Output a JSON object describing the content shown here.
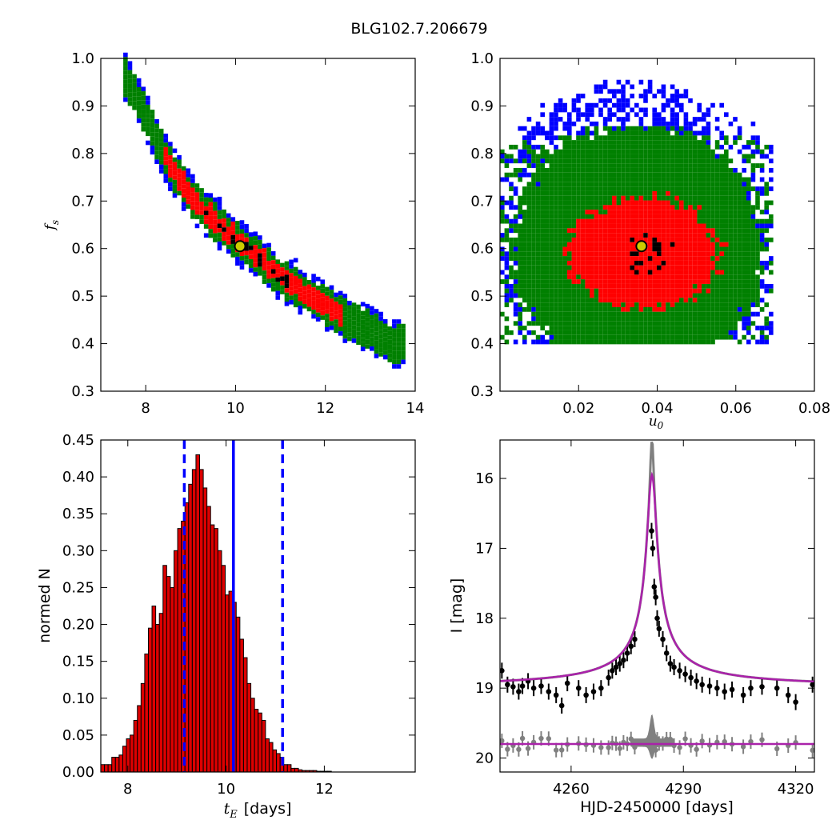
{
  "figure": {
    "title": "BLG102.7.206679"
  },
  "colors": {
    "level1": "#000000",
    "level2": "#ff0000",
    "level3": "#008000",
    "level4": "#0000ff",
    "best_fit_face": "#cccc00",
    "hist_bar": "#dd0000",
    "median_line": "#0000ff",
    "model_curve": "#aa22aa",
    "lc_points": "#000000",
    "residuals": "#808080"
  },
  "chart_data": [
    {
      "type": "heatmap",
      "panel": "top-left",
      "xlabel": "",
      "ylabel": "f_s",
      "xlim": [
        7,
        14
      ],
      "ylim": [
        0.3,
        1.0
      ],
      "xticks": [
        "8",
        "10",
        "12",
        "14"
      ],
      "yticks": [
        "0.3",
        "0.4",
        "0.5",
        "0.6",
        "0.7",
        "0.8",
        "0.9",
        "1.0"
      ],
      "density_levels": [
        "black (highest)",
        "red",
        "green",
        "blue (lowest)"
      ],
      "ridge": [
        [
          7.5,
          0.97
        ],
        [
          8.0,
          0.88
        ],
        [
          8.5,
          0.78
        ],
        [
          9.0,
          0.71
        ],
        [
          9.5,
          0.66
        ],
        [
          10.0,
          0.62
        ],
        [
          10.5,
          0.58
        ],
        [
          11.0,
          0.54
        ],
        [
          11.5,
          0.51
        ],
        [
          12.0,
          0.48
        ],
        [
          12.5,
          0.45
        ],
        [
          13.0,
          0.43
        ],
        [
          13.5,
          0.4
        ]
      ],
      "best_fit": {
        "x": 10.1,
        "y": 0.605
      }
    },
    {
      "type": "heatmap",
      "panel": "top-right",
      "xlabel": "u_0",
      "ylabel": "",
      "xlim": [
        0.0,
        0.08
      ],
      "ylim": [
        0.3,
        1.0
      ],
      "xticks": [
        "0.02",
        "0.04",
        "0.06",
        "0.08"
      ],
      "yticks": [
        "0.3",
        "0.4",
        "0.5",
        "0.6",
        "0.7",
        "0.8",
        "0.9",
        "1.0"
      ],
      "density_levels": [
        "black (highest)",
        "red",
        "green",
        "blue (lowest)"
      ],
      "cloud_center": {
        "x": 0.035,
        "y": 0.6
      },
      "best_fit": {
        "x": 0.036,
        "y": 0.605
      }
    },
    {
      "type": "bar",
      "panel": "bottom-left",
      "xlabel": "t_E",
      "xlabel_unit": "[days]",
      "ylabel": "normed N",
      "xlim": [
        7.45,
        13.85
      ],
      "ylim": [
        0.0,
        0.45
      ],
      "xticks": [
        "8",
        "10",
        "12"
      ],
      "yticks": [
        "0.00",
        "0.05",
        "0.10",
        "0.15",
        "0.20",
        "0.25",
        "0.30",
        "0.35",
        "0.40",
        "0.45"
      ],
      "bin_start": 7.45,
      "bin_width": 0.0745,
      "values": [
        0.01,
        0.01,
        0.01,
        0.02,
        0.02,
        0.023,
        0.035,
        0.045,
        0.05,
        0.07,
        0.09,
        0.12,
        0.16,
        0.195,
        0.225,
        0.2,
        0.215,
        0.28,
        0.265,
        0.25,
        0.3,
        0.33,
        0.34,
        0.365,
        0.39,
        0.41,
        0.43,
        0.41,
        0.385,
        0.36,
        0.335,
        0.33,
        0.3,
        0.28,
        0.24,
        0.245,
        0.23,
        0.21,
        0.18,
        0.155,
        0.12,
        0.1,
        0.085,
        0.08,
        0.07,
        0.045,
        0.04,
        0.03,
        0.025,
        0.02,
        0.01,
        0.01,
        0.005,
        0.005,
        0.003,
        0.002,
        0.002,
        0.002,
        0.002,
        0.001,
        0.001,
        0.001,
        0.001,
        0.0,
        0.0,
        0.0,
        0.0,
        0.0,
        0.0,
        0.0,
        0.0,
        0.0,
        0.0,
        0.0,
        0.0,
        0.0,
        0.0,
        0.0,
        0.0,
        0.0,
        0.0,
        0.0,
        0.0,
        0.0,
        0.0,
        0.0
      ],
      "vlines": [
        {
          "x": 9.15,
          "style": "dashed"
        },
        {
          "x": 10.15,
          "style": "solid"
        },
        {
          "x": 11.15,
          "style": "dashed"
        }
      ]
    },
    {
      "type": "line",
      "panel": "bottom-right",
      "xlabel": "HJD-2450000 [days]",
      "ylabel": "I [mag]",
      "xlim": [
        4241,
        4325
      ],
      "ylim": [
        20.2,
        15.45
      ],
      "xticks": [
        "4260",
        "4290",
        "4320"
      ],
      "yticks": [
        "16",
        "17",
        "18",
        "19",
        "20"
      ],
      "model": {
        "t0": 4281.6,
        "baseline": 19.0,
        "peak": 15.95,
        "width": 1.35
      },
      "residual_baseline": 19.8,
      "points": [
        [
          4241.5,
          18.75
        ],
        [
          4243.0,
          18.95
        ],
        [
          4244.5,
          18.98
        ],
        [
          4246.0,
          19.05
        ],
        [
          4247.0,
          18.97
        ],
        [
          4248.5,
          18.9
        ],
        [
          4250.0,
          19.0
        ],
        [
          4252.0,
          18.97
        ],
        [
          4254.0,
          19.05
        ],
        [
          4256.0,
          19.1
        ],
        [
          4257.5,
          19.25
        ],
        [
          4259.0,
          18.93
        ],
        [
          4262.0,
          19.0
        ],
        [
          4264.0,
          19.1
        ],
        [
          4266.0,
          19.05
        ],
        [
          4268.0,
          19.0
        ],
        [
          4270.0,
          18.85
        ],
        [
          4271.0,
          18.75
        ],
        [
          4272.0,
          18.7
        ],
        [
          4273.0,
          18.65
        ],
        [
          4274.0,
          18.6
        ],
        [
          4275.0,
          18.5
        ],
        [
          4276.0,
          18.4
        ],
        [
          4277.0,
          18.3
        ],
        [
          4281.5,
          16.75
        ],
        [
          4281.8,
          17.0
        ],
        [
          4282.2,
          17.55
        ],
        [
          4282.6,
          17.7
        ],
        [
          4283.0,
          18.0
        ],
        [
          4283.5,
          18.15
        ],
        [
          4284.5,
          18.3
        ],
        [
          4285.5,
          18.5
        ],
        [
          4286.5,
          18.65
        ],
        [
          4287.5,
          18.7
        ],
        [
          4289.0,
          18.75
        ],
        [
          4290.5,
          18.8
        ],
        [
          4292.0,
          18.85
        ],
        [
          4293.5,
          18.9
        ],
        [
          4295.0,
          18.95
        ],
        [
          4297.0,
          18.97
        ],
        [
          4299.0,
          19.0
        ],
        [
          4301.0,
          19.05
        ],
        [
          4303.0,
          19.02
        ],
        [
          4306.0,
          19.1
        ],
        [
          4308.0,
          19.0
        ],
        [
          4311.0,
          18.98
        ],
        [
          4315.0,
          19.0
        ],
        [
          4318.0,
          19.1
        ],
        [
          4320.0,
          19.2
        ],
        [
          4324.5,
          18.95
        ]
      ]
    }
  ]
}
